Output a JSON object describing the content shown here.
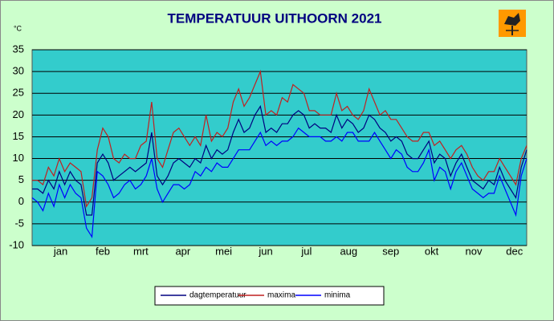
{
  "chart_data": {
    "type": "line",
    "title": "TEMPERATUUR UITHOORN 2021",
    "y_unit": "°C",
    "x": [
      1,
      5,
      9,
      13,
      17,
      21,
      25,
      29,
      33,
      37,
      41,
      45,
      49,
      53,
      57,
      61,
      65,
      69,
      73,
      77,
      81,
      85,
      89,
      93,
      97,
      101,
      105,
      109,
      113,
      117,
      121,
      125,
      129,
      133,
      137,
      141,
      145,
      149,
      153,
      157,
      161,
      165,
      169,
      173,
      177,
      181,
      185,
      189,
      193,
      197,
      201,
      205,
      209,
      213,
      217,
      221,
      225,
      229,
      233,
      237,
      241,
      245,
      249,
      253,
      257,
      261,
      265,
      269,
      273,
      277,
      281,
      285,
      289,
      293,
      297,
      301,
      305,
      309,
      313,
      317,
      321,
      325,
      329,
      333,
      337,
      341,
      345,
      349,
      353,
      357,
      361,
      365
    ],
    "xlim": [
      1,
      365
    ],
    "xticks": [
      {
        "value": 22,
        "label": "jan"
      },
      {
        "value": 53,
        "label": "feb"
      },
      {
        "value": 81,
        "label": "mrt"
      },
      {
        "value": 112,
        "label": "apr"
      },
      {
        "value": 142,
        "label": "mei"
      },
      {
        "value": 173,
        "label": "jun"
      },
      {
        "value": 203,
        "label": "jul"
      },
      {
        "value": 234,
        "label": "aug"
      },
      {
        "value": 265,
        "label": "sep"
      },
      {
        "value": 295,
        "label": "okt"
      },
      {
        "value": 326,
        "label": "nov"
      },
      {
        "value": 356,
        "label": "dec"
      }
    ],
    "ylim": [
      -10,
      35
    ],
    "yticks": [
      -10,
      -5,
      0,
      5,
      10,
      15,
      20,
      25,
      30,
      35
    ],
    "grid": true,
    "series": [
      {
        "name": "dagtemperatuur",
        "color": "#000080",
        "values": [
          3,
          3,
          2,
          5,
          3,
          7,
          4,
          7,
          5,
          4,
          -3,
          -3,
          9,
          11,
          9,
          5,
          6,
          7,
          8,
          7,
          8,
          9,
          16,
          6,
          4,
          6,
          9,
          10,
          9,
          8,
          10,
          9,
          13,
          10,
          12,
          11,
          12,
          16,
          19,
          16,
          17,
          20,
          22,
          16,
          17,
          16,
          18,
          18,
          20,
          21,
          20,
          17,
          18,
          17,
          17,
          16,
          20,
          17,
          19,
          18,
          16,
          17,
          20,
          19,
          17,
          16,
          14,
          15,
          14,
          11,
          10,
          10,
          12,
          14,
          9,
          11,
          10,
          6,
          9,
          11,
          8,
          5,
          4,
          3,
          5,
          4,
          8,
          5,
          3,
          1,
          8,
          12
        ]
      },
      {
        "name": "maxima",
        "color": "#c02020",
        "values": [
          5,
          5,
          4,
          8,
          6,
          10,
          7,
          9,
          8,
          7,
          -1,
          1,
          12,
          17,
          15,
          10,
          9,
          11,
          10,
          10,
          13,
          14,
          23,
          10,
          8,
          12,
          16,
          17,
          15,
          13,
          15,
          13,
          20,
          14,
          16,
          15,
          17,
          23,
          26,
          22,
          24,
          27,
          30,
          20,
          21,
          20,
          24,
          23,
          27,
          26,
          25,
          21,
          21,
          20,
          20,
          20,
          25,
          21,
          22,
          20,
          19,
          21,
          26,
          23,
          20,
          21,
          19,
          19,
          17,
          15,
          14,
          14,
          16,
          16,
          13,
          14,
          12,
          10,
          12,
          13,
          11,
          8,
          6,
          5,
          7,
          7,
          10,
          8,
          6,
          4,
          10,
          13
        ]
      },
      {
        "name": "minima",
        "color": "#0000ff",
        "values": [
          1,
          0,
          -2,
          2,
          -1,
          4,
          1,
          4,
          2,
          1,
          -6,
          -8,
          7,
          6,
          4,
          1,
          2,
          4,
          5,
          3,
          4,
          6,
          10,
          3,
          0,
          2,
          4,
          4,
          3,
          4,
          7,
          6,
          8,
          7,
          9,
          8,
          8,
          10,
          12,
          12,
          12,
          14,
          16,
          13,
          14,
          13,
          14,
          14,
          15,
          17,
          16,
          15,
          15,
          15,
          14,
          14,
          15,
          14,
          16,
          16,
          14,
          14,
          14,
          16,
          14,
          12,
          10,
          12,
          11,
          8,
          7,
          7,
          9,
          12,
          5,
          8,
          7,
          3,
          7,
          9,
          6,
          3,
          2,
          1,
          2,
          2,
          6,
          3,
          0,
          -3,
          6,
          10
        ]
      }
    ]
  }
}
